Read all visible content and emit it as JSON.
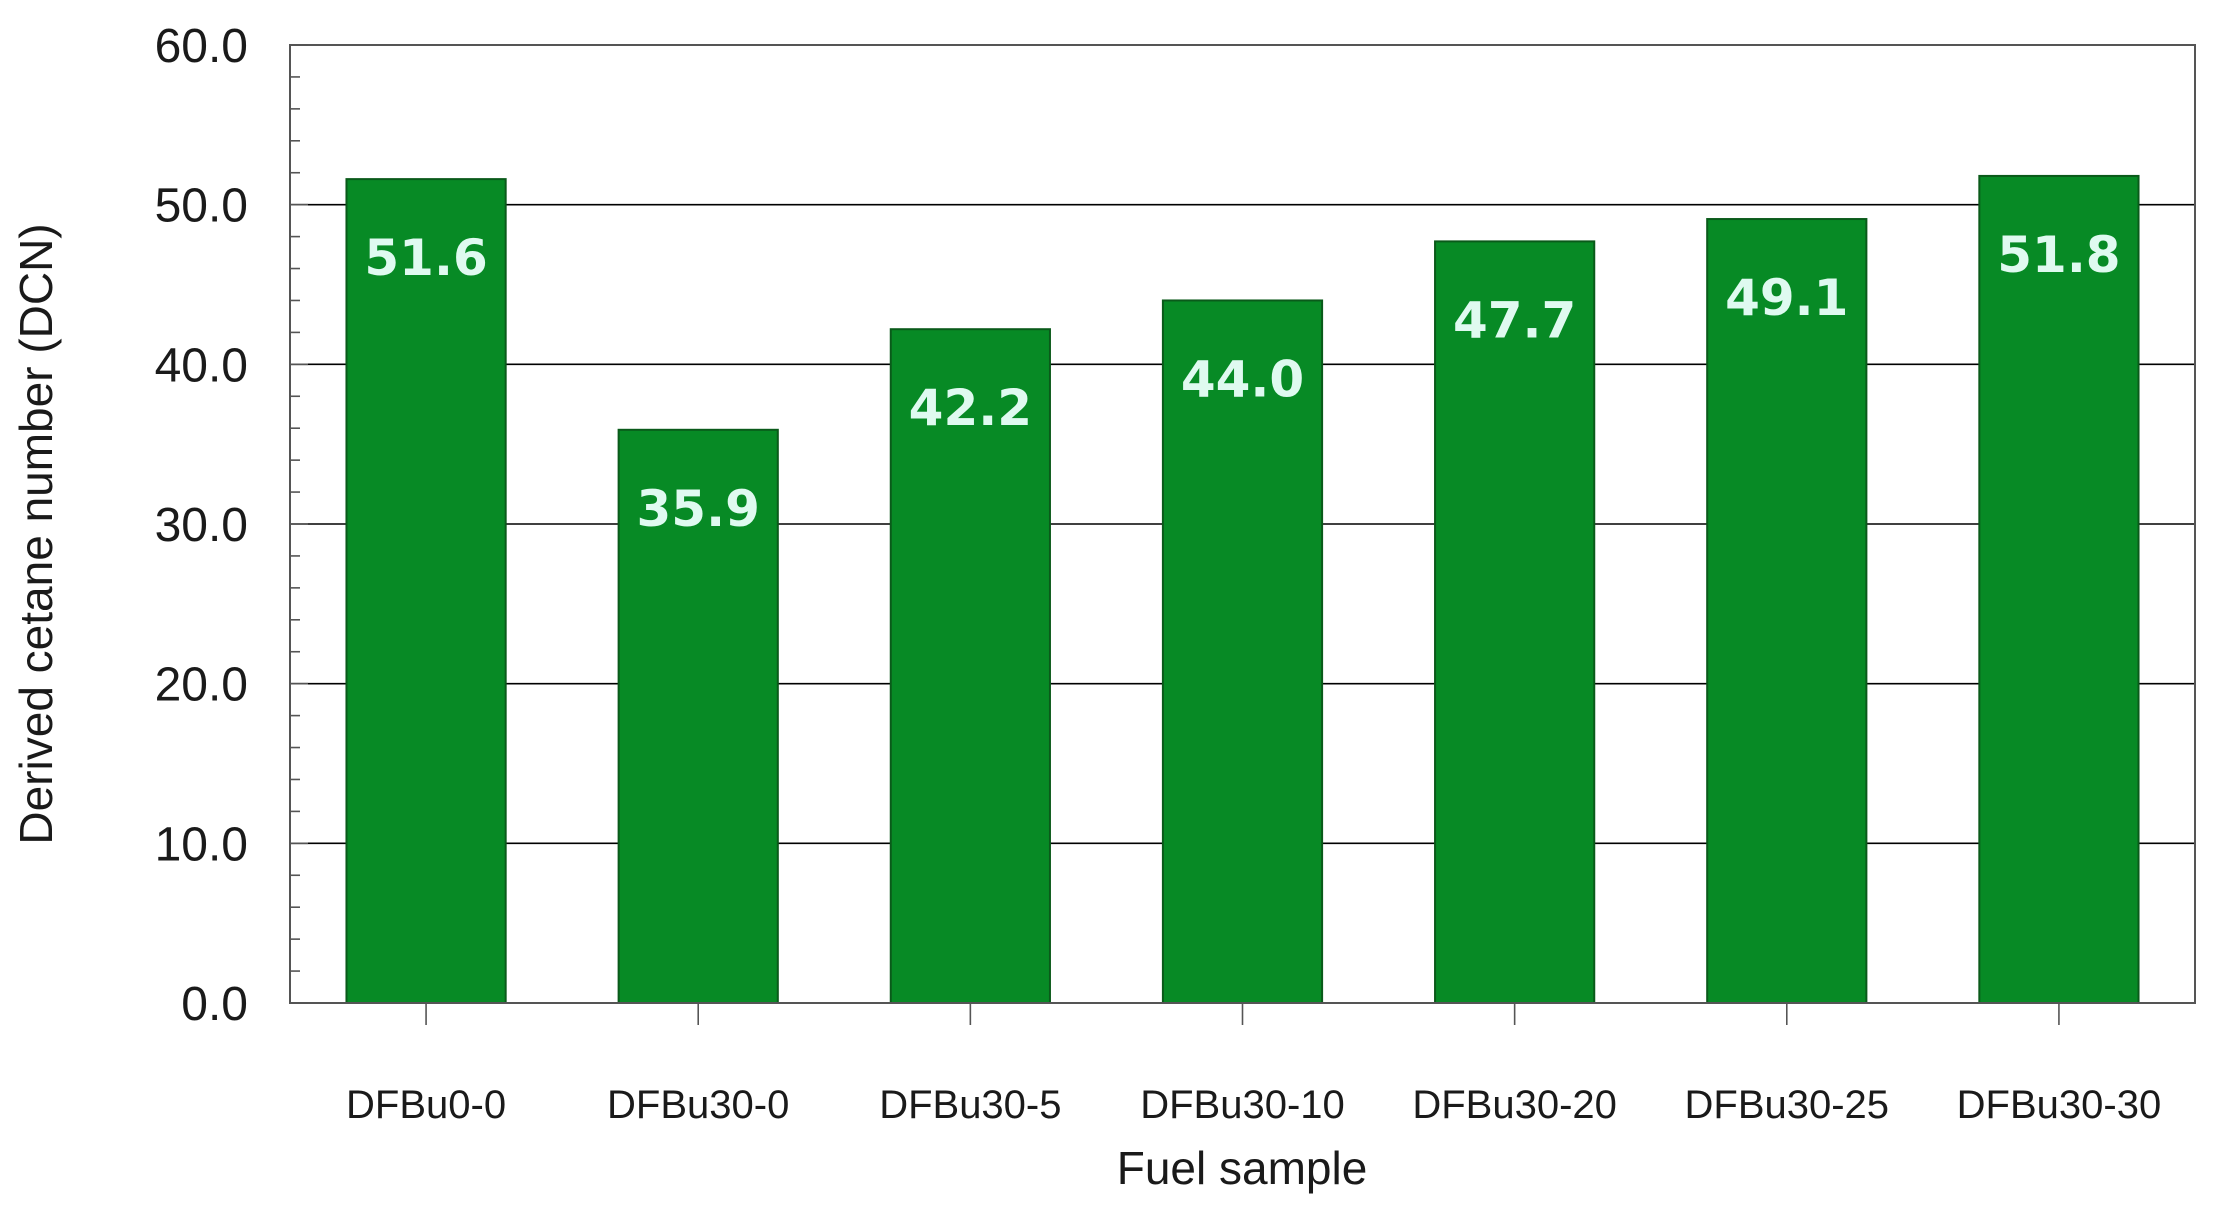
{
  "chart_data": {
    "type": "bar",
    "title": "",
    "xlabel": "Fuel sample",
    "ylabel": "Derived cetane number (DCN)",
    "categories": [
      "DFBu0-0",
      "DFBu30-0",
      "DFBu30-5",
      "DFBu30-10",
      "DFBu30-20",
      "DFBu30-25",
      "DFBu30-30"
    ],
    "values": [
      51.6,
      35.9,
      42.2,
      44.0,
      47.7,
      49.1,
      51.8
    ],
    "value_labels": [
      "51.6",
      "35.9",
      "42.2",
      "44.0",
      "47.7",
      "49.1",
      "51.8"
    ],
    "yticks": [
      "0.0",
      "10.0",
      "20.0",
      "30.0",
      "40.0",
      "50.0",
      "60.0"
    ],
    "ylim": [
      0,
      60
    ],
    "grid": true,
    "minor_ticks_per_major": 5,
    "colors": {
      "bar_fill": "#078a25",
      "bar_stroke": "#0a5a1a",
      "data_label": "#dffaf0",
      "grid": "#000000",
      "axis": "#555555"
    }
  }
}
